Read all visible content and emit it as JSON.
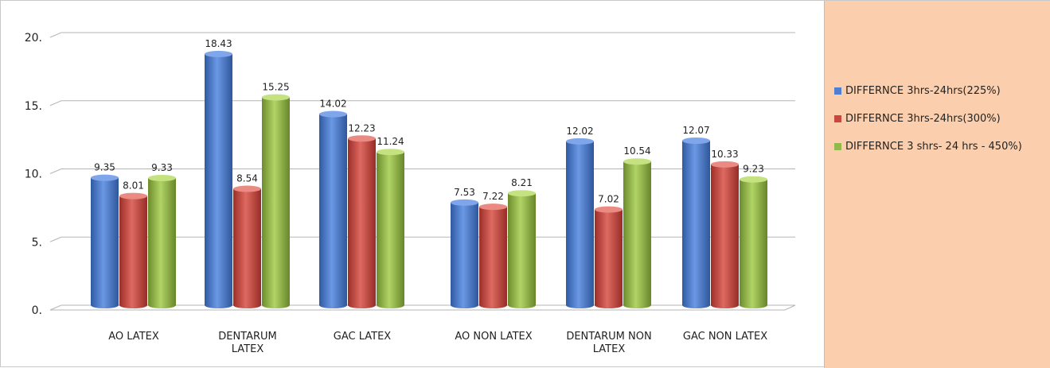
{
  "chart_data": {
    "type": "bar",
    "categories": [
      "AO LATEX",
      "DENTARUM LATEX",
      "GAC LATEX",
      "AO  NON LATEX",
      "DENTARUM NON LATEX",
      "GAC  NON LATEX"
    ],
    "series": [
      {
        "name": "DIFFERNCE 3hrs-24hrs(225%)",
        "color": "#4f7fd0",
        "values": [
          9.35,
          18.43,
          14.02,
          7.53,
          12.02,
          12.07
        ],
        "labels": [
          "9.35",
          "18.43",
          "14.02",
          "7.53",
          "12.02",
          "12.07"
        ]
      },
      {
        "name": "DIFFERNCE 3hrs-24hrs(300%)",
        "color": "#c9473f",
        "values": [
          8.01,
          8.54,
          12.23,
          7.22,
          7.02,
          10.33
        ],
        "labels": [
          "8.01",
          "8.54",
          "12.23",
          "7.22",
          "7.02",
          "10.33"
        ]
      },
      {
        "name": "DIFFERNCE 3 shrs- 24 hrs - 450%)",
        "color": "#93b94a",
        "values": [
          9.33,
          15.25,
          11.24,
          8.21,
          10.54,
          9.23
        ],
        "labels": [
          "9.33",
          "15.25",
          "11.24",
          "8.21",
          "10.54",
          "9.23"
        ]
      }
    ],
    "yticks": [
      "0.",
      "5.",
      "10.",
      "15.",
      "20."
    ],
    "ylim": [
      0,
      20
    ],
    "grid": true,
    "legend_position": "right",
    "title": "",
    "xlabel": "",
    "ylabel": ""
  }
}
